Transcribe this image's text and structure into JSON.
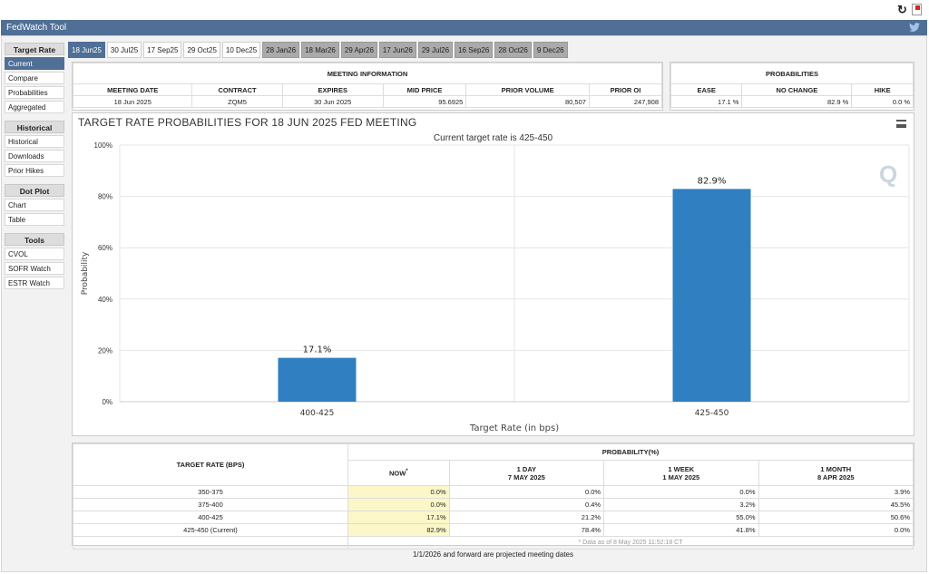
{
  "app": {
    "title": "FedWatch Tool"
  },
  "sidebar": {
    "sections": [
      {
        "heading": "Target Rate",
        "items": [
          "Current",
          "Compare",
          "Probabilities",
          "Aggregated"
        ]
      },
      {
        "heading": "Historical",
        "items": [
          "Historical",
          "Downloads",
          "Prior Hikes"
        ]
      },
      {
        "heading": "Dot Plot",
        "items": [
          "Chart",
          "Table"
        ]
      },
      {
        "heading": "Tools",
        "items": [
          "CVOL",
          "SOFR Watch",
          "ESTR Watch"
        ]
      }
    ]
  },
  "tabs": [
    {
      "label": "18 Jun25",
      "state": "active"
    },
    {
      "label": "30 Jul25",
      "state": "normal"
    },
    {
      "label": "17 Sep25",
      "state": "normal"
    },
    {
      "label": "29 Oct25",
      "state": "normal"
    },
    {
      "label": "10 Dec25",
      "state": "normal"
    },
    {
      "label": "28 Jan26",
      "state": "future"
    },
    {
      "label": "18 Mar26",
      "state": "future"
    },
    {
      "label": "29 Apr26",
      "state": "future"
    },
    {
      "label": "17 Jun26",
      "state": "future"
    },
    {
      "label": "29 Jul26",
      "state": "future"
    },
    {
      "label": "16 Sep26",
      "state": "future"
    },
    {
      "label": "28 Oct26",
      "state": "future"
    },
    {
      "label": "9 Dec26",
      "state": "future"
    }
  ],
  "meeting_info": {
    "heading": "MEETING INFORMATION",
    "headers": [
      "MEETING DATE",
      "CONTRACT",
      "EXPIRES",
      "MID PRICE",
      "PRIOR VOLUME",
      "PRIOR OI"
    ],
    "values": [
      "18 Jun 2025",
      "ZQM5",
      "30 Jun 2025",
      "95.6925",
      "80,507",
      "247,908"
    ]
  },
  "probabilities": {
    "heading": "PROBABILITIES",
    "headers": [
      "EASE",
      "NO CHANGE",
      "HIKE"
    ],
    "values": [
      "17.1 %",
      "82.9 %",
      "0.0 %"
    ]
  },
  "chart": {
    "title": "TARGET RATE PROBABILITIES FOR 18 JUN 2025 FED MEETING",
    "subtitle": "Current target rate is 425-450",
    "watermark": "Q",
    "colors": {
      "bar": "#2f7fc1",
      "grid": "#e6e6e6"
    }
  },
  "chart_data": {
    "type": "bar",
    "title": "TARGET RATE PROBABILITIES FOR 18 JUN 2025 FED MEETING",
    "subtitle": "Current target rate is 425-450",
    "categories": [
      "400-425",
      "425-450"
    ],
    "values": [
      17.1,
      82.9
    ],
    "data_labels": [
      "17.1%",
      "82.9%"
    ],
    "xlabel": "Target Rate (in bps)",
    "ylabel": "Probability",
    "ylim": [
      0,
      100
    ],
    "yticks": [
      "0%",
      "20%",
      "40%",
      "60%",
      "80%",
      "100%"
    ],
    "grid": true,
    "legend": "none"
  },
  "prob_table": {
    "col_rate": "TARGET RATE (BPS)",
    "group": "PROBABILITY(%)",
    "cols": [
      {
        "l1": "NOW",
        "l2": "",
        "star": "*"
      },
      {
        "l1": "1 DAY",
        "l2": "7 MAY 2025",
        "star": ""
      },
      {
        "l1": "1 WEEK",
        "l2": "1 MAY 2025",
        "star": ""
      },
      {
        "l1": "1 MONTH",
        "l2": "8 APR 2025",
        "star": ""
      }
    ],
    "rows": [
      {
        "rate": "350-375",
        "now": "0.0%",
        "day": "0.0%",
        "week": "0.0%",
        "month": "3.9%"
      },
      {
        "rate": "375-400",
        "now": "0.0%",
        "day": "0.4%",
        "week": "3.2%",
        "month": "45.5%"
      },
      {
        "rate": "400-425",
        "now": "17.1%",
        "day": "21.2%",
        "week": "55.0%",
        "month": "50.6%"
      },
      {
        "rate": "425-450 (Current)",
        "now": "82.9%",
        "day": "78.4%",
        "week": "41.8%",
        "month": "0.0%"
      }
    ],
    "note": "* Data as of 8 May 2025 11:52:18 CT"
  },
  "footnote": "1/1/2026 and forward are projected meeting dates"
}
